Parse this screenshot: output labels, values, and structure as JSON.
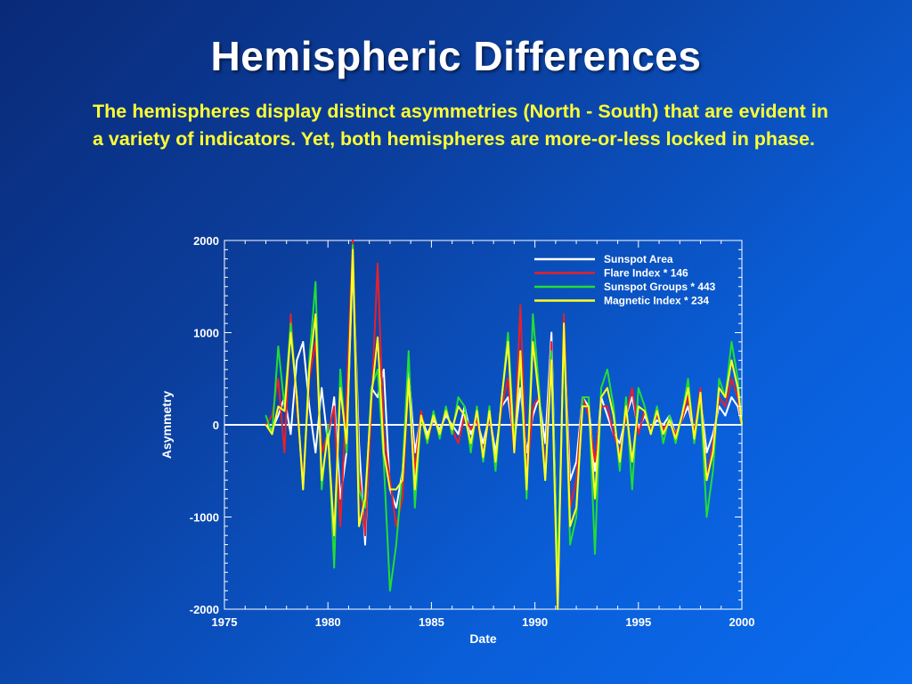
{
  "slide": {
    "title": "Hemispheric Differences",
    "body": "The hemispheres display distinct asymmetries (North - South) that are evident in a variety of indicators. Yet, both hemispheres are more-or-less locked in phase."
  },
  "colors": {
    "background_start": "#0a2a78",
    "background_end": "#0a6cf0",
    "title": "#ffffff",
    "body_text": "#ffff33"
  },
  "chart_data": {
    "type": "line",
    "xlabel": "Date",
    "ylabel": "Asymmetry",
    "xlim": [
      1975,
      2000
    ],
    "ylim": [
      -2000,
      2000
    ],
    "xticks": [
      1975,
      1980,
      1985,
      1990,
      1995,
      2000
    ],
    "yticks": [
      -2000,
      -1000,
      0,
      1000,
      2000
    ],
    "zero_line": true,
    "legend_position": "top-right",
    "series": [
      {
        "name": "Sunspot Area",
        "color": "#ffffff",
        "x": [
          1977.0,
          1977.3,
          1977.6,
          1977.9,
          1978.2,
          1978.5,
          1978.8,
          1979.1,
          1979.4,
          1979.7,
          1980.0,
          1980.3,
          1980.6,
          1980.9,
          1981.2,
          1981.5,
          1981.8,
          1982.1,
          1982.4,
          1982.7,
          1983.0,
          1983.3,
          1983.6,
          1983.9,
          1984.2,
          1984.5,
          1984.8,
          1985.1,
          1985.4,
          1985.7,
          1986.0,
          1986.3,
          1986.6,
          1986.9,
          1987.2,
          1987.5,
          1987.8,
          1988.1,
          1988.4,
          1988.7,
          1989.0,
          1989.3,
          1989.6,
          1989.9,
          1990.2,
          1990.5,
          1990.8,
          1991.1,
          1991.4,
          1991.7,
          1992.0,
          1992.3,
          1992.6,
          1992.9,
          1993.2,
          1993.5,
          1993.8,
          1994.1,
          1994.4,
          1994.7,
          1995.0,
          1995.3,
          1995.6,
          1995.9,
          1996.2,
          1996.5,
          1996.8,
          1997.1,
          1997.4,
          1997.7,
          1998.0,
          1998.3,
          1998.6,
          1998.9,
          1999.2,
          1999.5,
          1999.8,
          2000.0
        ],
        "y": [
          0,
          -50,
          100,
          300,
          -100,
          700,
          900,
          200,
          -300,
          400,
          -200,
          300,
          -800,
          -300,
          1800,
          -200,
          -1300,
          400,
          300,
          600,
          -700,
          -900,
          -500,
          600,
          -300,
          100,
          -100,
          50,
          -50,
          100,
          0,
          -100,
          200,
          -100,
          50,
          -200,
          100,
          -300,
          200,
          300,
          -200,
          400,
          -300,
          100,
          300,
          -200,
          1000,
          -1800,
          1000,
          -600,
          -400,
          300,
          200,
          -500,
          300,
          100,
          -100,
          -200,
          100,
          300,
          -50,
          100,
          -50,
          50,
          0,
          100,
          -100,
          50,
          200,
          -100,
          300,
          -300,
          -100,
          200,
          100,
          300,
          200,
          0
        ]
      },
      {
        "name": "Flare Index * 146",
        "color": "#e8202a",
        "x": [
          1977.0,
          1977.3,
          1977.6,
          1977.9,
          1978.2,
          1978.5,
          1978.8,
          1979.1,
          1979.4,
          1979.7,
          1980.0,
          1980.3,
          1980.6,
          1980.9,
          1981.2,
          1981.5,
          1981.8,
          1982.1,
          1982.4,
          1982.7,
          1983.0,
          1983.3,
          1983.6,
          1983.9,
          1984.2,
          1984.5,
          1984.8,
          1985.1,
          1985.4,
          1985.7,
          1986.0,
          1986.3,
          1986.6,
          1986.9,
          1987.2,
          1987.5,
          1987.8,
          1988.1,
          1988.4,
          1988.7,
          1989.0,
          1989.3,
          1989.6,
          1989.9,
          1990.2,
          1990.5,
          1990.8,
          1991.1,
          1991.4,
          1991.7,
          1992.0,
          1992.3,
          1992.6,
          1992.9,
          1993.2,
          1993.5,
          1993.8,
          1994.1,
          1994.4,
          1994.7,
          1995.0,
          1995.3,
          1995.6,
          1995.9,
          1996.2,
          1996.5,
          1996.8,
          1997.1,
          1997.4,
          1997.7,
          1998.0,
          1998.3,
          1998.6,
          1998.9,
          1999.2,
          1999.5,
          1999.8,
          2000.0
        ],
        "y": [
          0,
          100,
          500,
          -300,
          1200,
          200,
          -600,
          500,
          900,
          -300,
          -100,
          200,
          -1100,
          300,
          2000,
          -500,
          -1200,
          200,
          1750,
          -100,
          -600,
          -1100,
          -800,
          500,
          -500,
          150,
          -200,
          100,
          -100,
          150,
          -50,
          -200,
          100,
          -50,
          50,
          -300,
          100,
          -400,
          200,
          500,
          -300,
          1300,
          -600,
          200,
          300,
          -500,
          900,
          -2000,
          1200,
          -900,
          -600,
          300,
          100,
          -400,
          200,
          200,
          -100,
          -300,
          100,
          400,
          -100,
          150,
          -50,
          100,
          -50,
          50,
          -100,
          50,
          300,
          -100,
          400,
          -600,
          -200,
          300,
          200,
          500,
          300,
          0
        ]
      },
      {
        "name": "Sunspot Groups * 443",
        "color": "#22dd33",
        "x": [
          1977.0,
          1977.3,
          1977.6,
          1977.9,
          1978.2,
          1978.5,
          1978.8,
          1979.1,
          1979.4,
          1979.7,
          1980.0,
          1980.3,
          1980.6,
          1980.9,
          1981.2,
          1981.5,
          1981.8,
          1982.1,
          1982.4,
          1982.7,
          1983.0,
          1983.3,
          1983.6,
          1983.9,
          1984.2,
          1984.5,
          1984.8,
          1985.1,
          1985.4,
          1985.7,
          1986.0,
          1986.3,
          1986.6,
          1986.9,
          1987.2,
          1987.5,
          1987.8,
          1988.1,
          1988.4,
          1988.7,
          1989.0,
          1989.3,
          1989.6,
          1989.9,
          1990.2,
          1990.5,
          1990.8,
          1991.1,
          1991.4,
          1991.7,
          1992.0,
          1992.3,
          1992.6,
          1992.9,
          1993.2,
          1993.5,
          1993.8,
          1994.1,
          1994.4,
          1994.7,
          1995.0,
          1995.3,
          1995.6,
          1995.9,
          1996.2,
          1996.5,
          1996.8,
          1997.1,
          1997.4,
          1997.7,
          1998.0,
          1998.3,
          1998.6,
          1998.9,
          1999.2,
          1999.5,
          1999.8,
          2000.0
        ],
        "y": [
          100,
          -100,
          850,
          200,
          1100,
          300,
          -700,
          700,
          1550,
          -700,
          0,
          -1550,
          600,
          -300,
          1950,
          -700,
          -900,
          400,
          600,
          -400,
          -1800,
          -1300,
          -500,
          800,
          -900,
          100,
          -200,
          150,
          -150,
          200,
          -100,
          300,
          200,
          -300,
          200,
          -400,
          200,
          -500,
          300,
          1000,
          -200,
          700,
          -800,
          1200,
          400,
          -600,
          800,
          -1650,
          1000,
          -1300,
          -1000,
          300,
          300,
          -1400,
          400,
          600,
          200,
          -500,
          300,
          -700,
          400,
          200,
          -100,
          200,
          -200,
          100,
          -200,
          100,
          500,
          -200,
          300,
          -1000,
          -500,
          500,
          300,
          900,
          500,
          0
        ]
      },
      {
        "name": "Magnetic Index * 234",
        "color": "#ffff22",
        "x": [
          1977.0,
          1977.3,
          1977.6,
          1977.9,
          1978.2,
          1978.5,
          1978.8,
          1979.1,
          1979.4,
          1979.7,
          1980.0,
          1980.3,
          1980.6,
          1980.9,
          1981.2,
          1981.5,
          1981.8,
          1982.1,
          1982.4,
          1982.7,
          1983.0,
          1983.3,
          1983.6,
          1983.9,
          1984.2,
          1984.5,
          1984.8,
          1985.1,
          1985.4,
          1985.7,
          1986.0,
          1986.3,
          1986.6,
          1986.9,
          1987.2,
          1987.5,
          1987.8,
          1988.1,
          1988.4,
          1988.7,
          1989.0,
          1989.3,
          1989.6,
          1989.9,
          1990.2,
          1990.5,
          1990.8,
          1991.1,
          1991.4,
          1991.7,
          1992.0,
          1992.3,
          1992.6,
          1992.9,
          1993.2,
          1993.5,
          1993.8,
          1994.1,
          1994.4,
          1994.7,
          1995.0,
          1995.3,
          1995.6,
          1995.9,
          1996.2,
          1996.5,
          1996.8,
          1997.1,
          1997.4,
          1997.7,
          1998.0,
          1998.3,
          1998.6,
          1998.9,
          1999.2,
          1999.5,
          1999.8,
          2000.0
        ],
        "y": [
          0,
          -100,
          200,
          150,
          1000,
          300,
          -700,
          600,
          1200,
          -600,
          -100,
          -1200,
          400,
          -200,
          1900,
          -1100,
          -800,
          300,
          950,
          -300,
          -700,
          -700,
          -600,
          500,
          -700,
          100,
          -150,
          100,
          -100,
          150,
          -50,
          200,
          100,
          -200,
          150,
          -350,
          150,
          -400,
          300,
          900,
          -300,
          800,
          -700,
          900,
          300,
          -600,
          700,
          -2000,
          1100,
          -1100,
          -900,
          200,
          200,
          -800,
          300,
          400,
          100,
          -400,
          200,
          -400,
          200,
          150,
          -100,
          150,
          -100,
          50,
          -150,
          100,
          400,
          -150,
          350,
          -600,
          -300,
          400,
          300,
          700,
          400,
          0
        ]
      }
    ]
  }
}
